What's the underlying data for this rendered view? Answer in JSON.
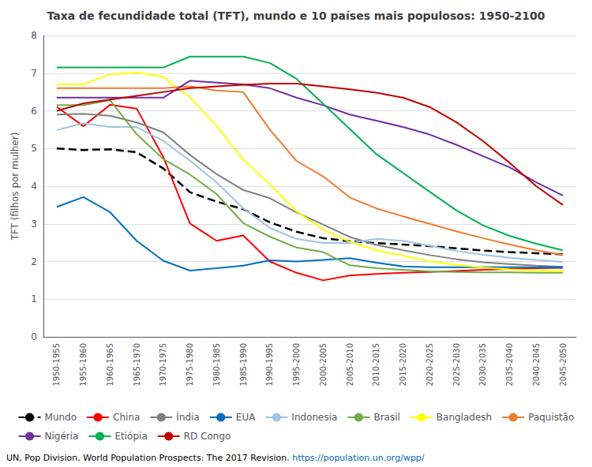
{
  "chart_data": {
    "type": "line",
    "title": "Taxa de fecundidade total (TFT), mundo e 10 países mais populosos: 1950-2100",
    "y_label": "TFT (filhos por mulher)",
    "annotations": [
      "UN, Pop Division. World Population Prospects: The 2017 Revision. ",
      "https://population.un.org/wpp/"
    ],
    "categories": [
      "1950-1955",
      "1955-1960",
      "1960-1965",
      "1965-1970",
      "1970-1975",
      "1975-1980",
      "1980-1985",
      "1985-1990",
      "1990-1995",
      "1995-2000",
      "2000-2005",
      "2005-2010",
      "2010-2015",
      "2015-2020",
      "2020-2025",
      "2025-2030",
      "2030-2035",
      "2035-2040",
      "2040-2045",
      "2045-2050"
    ],
    "ylim": [
      0,
      8
    ],
    "yticks": [
      0,
      1,
      2,
      3,
      4,
      5,
      6,
      7,
      8
    ],
    "grid": true,
    "legend": "bottom",
    "series": [
      {
        "name": "Mundo",
        "color": "#000000",
        "line_style": "dashed",
        "values": [
          5.0,
          4.96,
          4.98,
          4.9,
          4.47,
          3.84,
          3.59,
          3.39,
          3.04,
          2.79,
          2.62,
          2.54,
          2.49,
          2.45,
          2.41,
          2.35,
          2.29,
          2.25,
          2.22,
          2.19
        ]
      },
      {
        "name": "China",
        "color": "#FF0000",
        "line_style": "solid",
        "values": [
          6.11,
          5.59,
          6.16,
          6.06,
          4.77,
          3.01,
          2.55,
          2.69,
          2.0,
          1.7,
          1.5,
          1.63,
          1.67,
          1.7,
          1.72,
          1.75,
          1.78,
          1.8,
          1.82,
          1.83
        ]
      },
      {
        "name": "Índia",
        "color": "#808080",
        "line_style": "solid",
        "values": [
          5.9,
          5.92,
          5.87,
          5.69,
          5.43,
          4.83,
          4.32,
          3.9,
          3.68,
          3.3,
          2.98,
          2.65,
          2.44,
          2.3,
          2.17,
          2.06,
          1.98,
          1.93,
          1.89,
          1.86
        ]
      },
      {
        "name": "EUA",
        "color": "#0070C0",
        "line_style": "solid",
        "values": [
          3.45,
          3.71,
          3.31,
          2.55,
          2.02,
          1.76,
          1.82,
          1.89,
          2.03,
          2.0,
          2.04,
          2.09,
          1.97,
          1.87,
          1.85,
          1.85,
          1.85,
          1.85,
          1.85,
          1.85
        ]
      },
      {
        "name": "Indonesia",
        "color": "#9DC3E6",
        "line_style": "solid",
        "values": [
          5.49,
          5.67,
          5.57,
          5.57,
          5.2,
          4.68,
          4.1,
          3.41,
          2.89,
          2.6,
          2.49,
          2.49,
          2.6,
          2.55,
          2.42,
          2.28,
          2.18,
          2.1,
          2.04,
          1.99
        ]
      },
      {
        "name": "Brasil",
        "color": "#70AD47",
        "line_style": "solid",
        "values": [
          6.15,
          6.15,
          6.28,
          5.38,
          4.72,
          4.31,
          3.79,
          3.02,
          2.66,
          2.37,
          2.25,
          1.9,
          1.82,
          1.78,
          1.74,
          1.72,
          1.71,
          1.71,
          1.7,
          1.7
        ]
      },
      {
        "name": "Bangladesh",
        "color": "#FFFF00",
        "line_style": "solid",
        "values": [
          6.7,
          6.7,
          6.97,
          7.02,
          6.9,
          6.36,
          5.6,
          4.7,
          4.05,
          3.33,
          2.85,
          2.52,
          2.3,
          2.15,
          2.0,
          1.91,
          1.84,
          1.79,
          1.76,
          1.74
        ]
      },
      {
        "name": "Paquistão",
        "color": "#ED7D31",
        "line_style": "solid",
        "values": [
          6.6,
          6.6,
          6.6,
          6.6,
          6.6,
          6.65,
          6.54,
          6.5,
          5.5,
          4.67,
          4.26,
          3.7,
          3.41,
          3.2,
          3.0,
          2.8,
          2.62,
          2.45,
          2.3,
          2.18
        ]
      },
      {
        "name": "Nigéria",
        "color": "#7030A0",
        "line_style": "solid",
        "values": [
          6.35,
          6.35,
          6.35,
          6.35,
          6.35,
          6.8,
          6.75,
          6.7,
          6.6,
          6.35,
          6.15,
          5.9,
          5.74,
          5.57,
          5.37,
          5.1,
          4.8,
          4.5,
          4.1,
          3.75
        ]
      },
      {
        "name": "Etiópia",
        "color": "#00B050",
        "line_style": "solid",
        "values": [
          7.15,
          7.15,
          7.15,
          7.15,
          7.15,
          7.44,
          7.44,
          7.44,
          7.27,
          6.85,
          6.19,
          5.52,
          4.85,
          4.35,
          3.85,
          3.36,
          2.96,
          2.68,
          2.47,
          2.3
        ]
      },
      {
        "name": "RD Congo",
        "color": "#C00000",
        "line_style": "solid",
        "values": [
          6.0,
          6.2,
          6.3,
          6.4,
          6.5,
          6.6,
          6.65,
          6.69,
          6.72,
          6.72,
          6.65,
          6.57,
          6.48,
          6.35,
          6.1,
          5.7,
          5.2,
          4.62,
          4.0,
          3.5
        ]
      }
    ]
  }
}
